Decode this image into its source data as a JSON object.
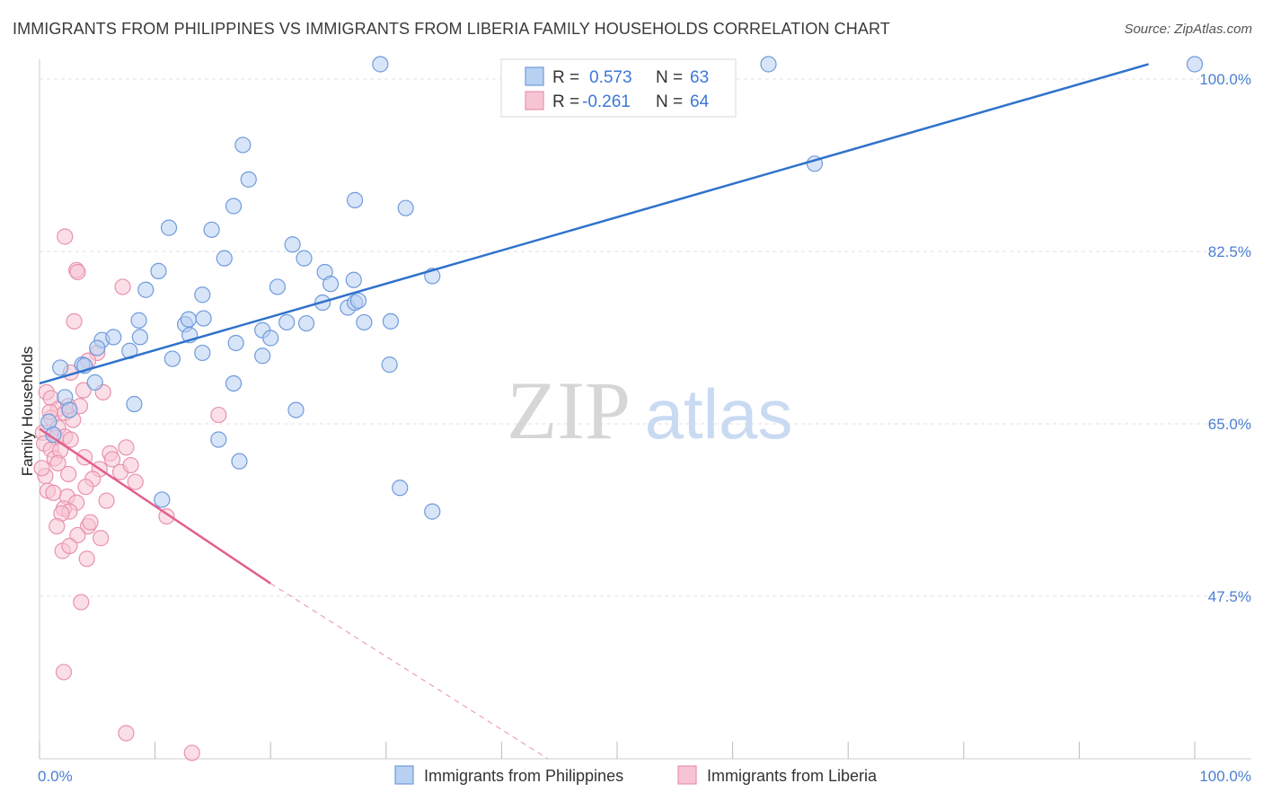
{
  "title": "IMMIGRANTS FROM PHILIPPINES VS IMMIGRANTS FROM LIBERIA FAMILY HOUSEHOLDS CORRELATION CHART",
  "source": "Source: ZipAtlas.com",
  "watermark": {
    "zip": "ZIP",
    "atlas": "atlas"
  },
  "colors": {
    "blue_fill": "#b8d0f2",
    "blue_stroke": "#6f9bdc",
    "blue_line": "#2f72cc",
    "pink_fill": "#f7c4d4",
    "pink_stroke": "#e992ad",
    "pink_line": "#e05f8e",
    "tick_text": "#4a7fd4",
    "grid": "#e2e2e2"
  },
  "legend_top": {
    "rows": [
      {
        "r_label": "R =",
        "r_value": "0.573",
        "n_label": "N =",
        "n_value": "63"
      },
      {
        "r_label": "R =",
        "r_value": "-0.261",
        "n_label": "N =",
        "n_value": "64"
      }
    ]
  },
  "legend_bottom": [
    "Immigrants from Philippines",
    "Immigrants from Liberia"
  ],
  "chart_data": {
    "type": "scatter",
    "title": "IMMIGRANTS FROM PHILIPPINES VS IMMIGRANTS FROM LIBERIA FAMILY HOUSEHOLDS CORRELATION CHART",
    "xlabel": "",
    "ylabel": "Family Households",
    "xlim": [
      0,
      100
    ],
    "ylim": [
      31,
      102
    ],
    "x_tick_labels": [
      "0.0%",
      "100.0%"
    ],
    "y_ticks": [
      47.5,
      65.0,
      82.5,
      100.0
    ],
    "y_tick_labels": [
      "47.5%",
      "65.0%",
      "82.5%",
      "100.0%"
    ],
    "grid": true,
    "legend_placement": "top-center",
    "series": [
      {
        "name": "Immigrants from Philippines",
        "trend": {
          "x": [
            0,
            96
          ],
          "y": [
            69.1,
            101.5
          ],
          "dashed_to": null
        },
        "points": [
          [
            29.5,
            101.5
          ],
          [
            63.1,
            101.5
          ],
          [
            100,
            101.5
          ],
          [
            17.6,
            93.3
          ],
          [
            18.1,
            89.8
          ],
          [
            67.1,
            91.4
          ],
          [
            16.8,
            87.1
          ],
          [
            27.3,
            87.7
          ],
          [
            31.7,
            86.9
          ],
          [
            11.2,
            84.9
          ],
          [
            14.9,
            84.7
          ],
          [
            21.9,
            83.2
          ],
          [
            16.0,
            81.8
          ],
          [
            22.9,
            81.8
          ],
          [
            24.7,
            80.4
          ],
          [
            10.3,
            80.5
          ],
          [
            9.2,
            78.6
          ],
          [
            14.1,
            78.1
          ],
          [
            20.6,
            78.9
          ],
          [
            25.2,
            79.2
          ],
          [
            27.2,
            79.6
          ],
          [
            34.0,
            80.0
          ],
          [
            26.7,
            76.8
          ],
          [
            24.5,
            77.3
          ],
          [
            27.3,
            77.3
          ],
          [
            8.6,
            75.5
          ],
          [
            12.6,
            75.1
          ],
          [
            21.4,
            75.3
          ],
          [
            23.1,
            75.2
          ],
          [
            28.1,
            75.3
          ],
          [
            27.6,
            77.5
          ],
          [
            30.4,
            75.4
          ],
          [
            12.9,
            75.6
          ],
          [
            14.2,
            75.7
          ],
          [
            5.4,
            73.5
          ],
          [
            6.4,
            73.8
          ],
          [
            13.0,
            74.0
          ],
          [
            19.3,
            74.5
          ],
          [
            20.0,
            73.7
          ],
          [
            8.7,
            73.8
          ],
          [
            17.0,
            73.2
          ],
          [
            5.0,
            72.7
          ],
          [
            7.8,
            72.4
          ],
          [
            14.1,
            72.2
          ],
          [
            11.5,
            71.6
          ],
          [
            3.7,
            71.0
          ],
          [
            19.3,
            71.9
          ],
          [
            16.8,
            69.1
          ],
          [
            30.3,
            71.0
          ],
          [
            1.8,
            70.7
          ],
          [
            3.9,
            70.9
          ],
          [
            4.8,
            69.2
          ],
          [
            8.2,
            67.0
          ],
          [
            22.2,
            66.4
          ],
          [
            2.2,
            67.7
          ],
          [
            2.6,
            66.4
          ],
          [
            0.8,
            65.2
          ],
          [
            15.5,
            63.4
          ],
          [
            17.3,
            61.2
          ],
          [
            31.2,
            58.5
          ],
          [
            10.6,
            57.3
          ],
          [
            34.0,
            56.1
          ],
          [
            1.2,
            63.9
          ]
        ]
      },
      {
        "name": "Immigrants from Liberia",
        "trend": {
          "x": [
            0,
            20
          ],
          "y": [
            64.5,
            48.8
          ],
          "dashed_to": [
            44,
            31
          ]
        },
        "points": [
          [
            2.2,
            84.0
          ],
          [
            3.2,
            80.6
          ],
          [
            3.3,
            80.4
          ],
          [
            7.2,
            78.9
          ],
          [
            3.0,
            75.4
          ],
          [
            5.0,
            72.2
          ],
          [
            4.2,
            71.4
          ],
          [
            2.7,
            70.2
          ],
          [
            3.8,
            68.4
          ],
          [
            5.5,
            68.2
          ],
          [
            0.6,
            68.2
          ],
          [
            1.0,
            67.6
          ],
          [
            1.6,
            66.5
          ],
          [
            2.2,
            66.1
          ],
          [
            2.5,
            66.8
          ],
          [
            1.0,
            65.6
          ],
          [
            1.6,
            64.6
          ],
          [
            0.3,
            64.1
          ],
          [
            15.5,
            65.9
          ],
          [
            1.4,
            63.6
          ],
          [
            2.2,
            63.7
          ],
          [
            2.7,
            63.4
          ],
          [
            0.4,
            63.0
          ],
          [
            1.0,
            62.4
          ],
          [
            6.1,
            62.0
          ],
          [
            7.5,
            62.6
          ],
          [
            1.3,
            61.5
          ],
          [
            3.9,
            61.6
          ],
          [
            5.2,
            60.4
          ],
          [
            6.3,
            61.4
          ],
          [
            7.0,
            60.1
          ],
          [
            7.9,
            60.8
          ],
          [
            0.5,
            59.7
          ],
          [
            4.6,
            59.4
          ],
          [
            8.3,
            59.1
          ],
          [
            4.0,
            58.6
          ],
          [
            0.7,
            58.2
          ],
          [
            2.4,
            57.6
          ],
          [
            3.2,
            57.0
          ],
          [
            2.1,
            56.4
          ],
          [
            2.6,
            56.1
          ],
          [
            1.9,
            55.9
          ],
          [
            11.0,
            55.6
          ],
          [
            1.5,
            54.6
          ],
          [
            4.2,
            54.6
          ],
          [
            3.3,
            53.7
          ],
          [
            5.3,
            53.4
          ],
          [
            2.0,
            52.1
          ],
          [
            4.1,
            51.3
          ],
          [
            2.6,
            52.6
          ],
          [
            3.6,
            46.9
          ],
          [
            2.1,
            39.8
          ],
          [
            7.5,
            33.6
          ],
          [
            13.2,
            31.6
          ],
          [
            0.2,
            60.5
          ],
          [
            1.8,
            62.3
          ],
          [
            2.9,
            65.4
          ],
          [
            3.5,
            66.8
          ],
          [
            0.9,
            66.2
          ],
          [
            1.2,
            58.0
          ],
          [
            2.5,
            59.9
          ],
          [
            5.8,
            57.2
          ],
          [
            4.4,
            55.0
          ],
          [
            1.6,
            61.0
          ]
        ]
      }
    ]
  }
}
